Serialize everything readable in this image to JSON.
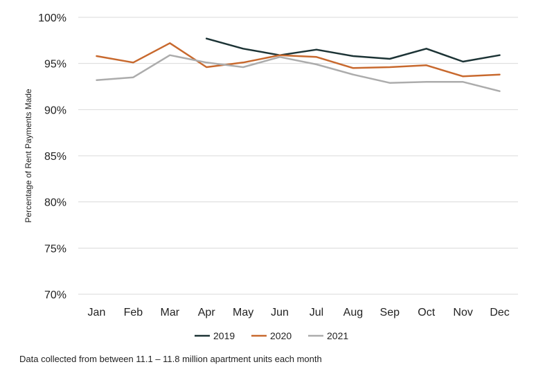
{
  "chart_data": {
    "type": "line",
    "categories": [
      "Jan",
      "Feb",
      "Mar",
      "Apr",
      "May",
      "Jun",
      "Jul",
      "Aug",
      "Sep",
      "Oct",
      "Nov",
      "Dec"
    ],
    "ylabel": "Percentage of Rent Payments Made",
    "ylim": [
      70,
      100
    ],
    "yticks": [
      70,
      75,
      80,
      85,
      90,
      95,
      100
    ],
    "ytick_labels": [
      "70%",
      "75%",
      "80%",
      "85%",
      "90%",
      "95%",
      "100%"
    ],
    "grid": "horizontal",
    "legend_position": "bottom",
    "series": [
      {
        "name": "2019",
        "color": "#1c3335",
        "values": [
          null,
          null,
          null,
          97.7,
          96.6,
          95.9,
          96.5,
          95.8,
          95.5,
          96.6,
          95.2,
          95.9
        ]
      },
      {
        "name": "2020",
        "color": "#c8692e",
        "values": [
          95.8,
          95.1,
          97.2,
          94.6,
          95.1,
          95.9,
          95.7,
          94.5,
          94.6,
          94.8,
          93.6,
          93.8
        ]
      },
      {
        "name": "2021",
        "color": "#acacac",
        "values": [
          93.2,
          93.5,
          95.9,
          95.1,
          94.6,
          95.7,
          94.9,
          93.8,
          92.9,
          93.0,
          93.0,
          92.0
        ]
      }
    ]
  },
  "footnote": "Data collected from between 11.1 – 11.8 million apartment units each month"
}
